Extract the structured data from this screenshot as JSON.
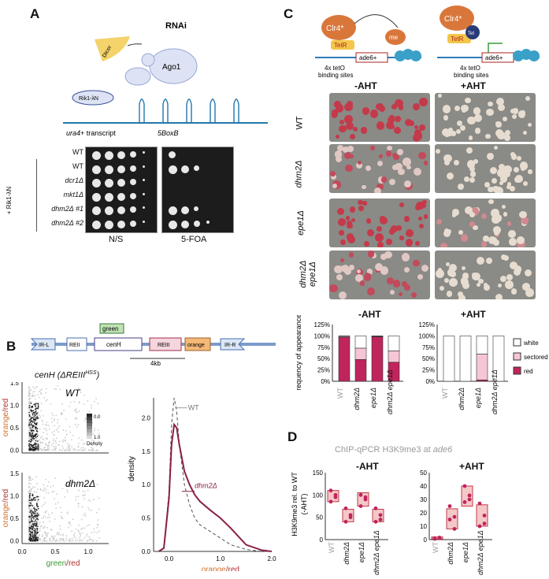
{
  "panels": {
    "A": {
      "letter": "A",
      "rnai_title": "RNAi",
      "dicer": "Dicer",
      "ago1": "Ago1",
      "rik1": "Rik1-λN",
      "transcript": "ura4",
      "transcript_suffix": "+ transcript",
      "boxb": "5BoxB",
      "strains": [
        "WT",
        "WT",
        "dcr1Δ",
        "mkt1Δ",
        "dhm2Δ #1",
        "dhm2Δ #2"
      ],
      "group_label": "+ Rik1-λN",
      "plate_labels": [
        "N/S",
        "5-FOA"
      ]
    },
    "B": {
      "letter": "B",
      "construct": [
        "IR-L",
        "REII",
        "cenH",
        "REIII",
        "orange",
        "IR-R"
      ],
      "green_label": "green",
      "scale_label": "4kb",
      "title_main": "cenH (ΔREIII",
      "title_sup": "HSS",
      "title_end": ")",
      "density_label": "Density",
      "density_ticks": [
        "0.0",
        "1.0"
      ],
      "scatter_titles": [
        "WT",
        "dhm2Δ"
      ],
      "y_label_orange": "orange",
      "y_label_red": "/red",
      "x_label_green": "green",
      "x_label_red": "/red",
      "scatter_yticks": [
        "1.5",
        "1.0",
        "0.5",
        "0.0"
      ],
      "scatter_xticks": [
        "0.0",
        "0.5",
        "1.0"
      ],
      "density_axis": "density",
      "density_yticks": [
        "2.0",
        "1.5",
        "1.0",
        "0.5",
        "0.0"
      ],
      "density_xticks": [
        "0.0",
        "1.0",
        "2.0"
      ],
      "density_xlabel_orange": "orange",
      "density_xlabel_red": "/red",
      "legend_wt": "WT",
      "legend_dhm2": "dhm2Δ"
    },
    "C": {
      "letter": "C",
      "clr4": "Clr4*",
      "tetr": "TetR",
      "tet": "Tet",
      "me": "me",
      "ade6": "ade6+",
      "binding": [
        "4x tetO",
        "binding sites"
      ],
      "conditions": [
        "-AHT",
        "+AHT"
      ],
      "rows": [
        "WT",
        "dhm2Δ",
        "epe1Δ",
        "dhm2Δ epe1Δ"
      ],
      "y_axis": "Frequency of appearance",
      "yticks": [
        "125%",
        "100%",
        "75%",
        "50%",
        "25%",
        "0%"
      ],
      "legend": [
        "white",
        "sectored",
        "red"
      ],
      "xcats": [
        "WT",
        "dhm2Δ",
        "epe1Δ",
        "dhm2Δ epe1Δ"
      ],
      "colors": {
        "red": "#c0245c",
        "sectored": "#f6c6d6",
        "white": "#ffffff"
      }
    },
    "D": {
      "letter": "D",
      "title": "ChIP-qPCR H3K9me3 at ",
      "title_italic": "ade6",
      "conditions": [
        "-AHT",
        "+AHT"
      ],
      "y_axis": [
        "H3K9me3 rel. to WT",
        "(-AHT)"
      ],
      "left_yticks": [
        "150",
        "100",
        "50",
        "0"
      ],
      "right_yticks": [
        "50",
        "40",
        "30",
        "20",
        "10",
        "0"
      ],
      "xcats": [
        "WT",
        "dhm2Δ",
        "epe1Δ",
        "dhm2Δ epe1Δ"
      ]
    }
  },
  "chart_data": [
    {
      "type": "bar",
      "title": "-AHT",
      "ylabel": "Frequency of appearance",
      "ylim": [
        0,
        125
      ],
      "categories": [
        "WT",
        "dhm2Δ",
        "epe1Δ",
        "dhm2Δ epe1Δ"
      ],
      "series": [
        {
          "name": "red",
          "values": [
            97,
            48,
            98,
            42
          ]
        },
        {
          "name": "sectored",
          "values": [
            2,
            25,
            1,
            25
          ]
        },
        {
          "name": "white",
          "values": [
            1,
            27,
            1,
            33
          ]
        }
      ]
    },
    {
      "type": "bar",
      "title": "+AHT",
      "ylabel": "Frequency of appearance",
      "ylim": [
        0,
        125
      ],
      "categories": [
        "WT",
        "dhm2Δ",
        "epe1Δ",
        "dhm2Δ epe1Δ"
      ],
      "series": [
        {
          "name": "red",
          "values": [
            0,
            0,
            3,
            0
          ]
        },
        {
          "name": "sectored",
          "values": [
            0,
            0,
            57,
            0
          ]
        },
        {
          "name": "white",
          "values": [
            100,
            100,
            40,
            100
          ]
        }
      ]
    },
    {
      "type": "scatter",
      "title": "-AHT",
      "ylim": [
        0,
        150
      ],
      "categories": [
        "WT",
        "dhm2Δ",
        "epe1Δ",
        "dhm2Δ epe1Δ"
      ],
      "points": [
        [
          110,
          95,
          85,
          100
        ],
        [
          70,
          55,
          40,
          50
        ],
        [
          100,
          90,
          75,
          95
        ],
        [
          70,
          55,
          40,
          45
        ]
      ],
      "box": [
        [
          85,
          110
        ],
        [
          40,
          68
        ],
        [
          75,
          105
        ],
        [
          40,
          68
        ]
      ]
    },
    {
      "type": "scatter",
      "title": "+AHT",
      "ylim": [
        0,
        50
      ],
      "categories": [
        "WT",
        "dhm2Δ",
        "epe1Δ",
        "dhm2Δ epe1Δ"
      ],
      "points": [
        [
          1,
          1.5,
          0.5,
          1
        ],
        [
          25,
          17,
          15,
          8
        ],
        [
          40,
          30,
          28,
          33
        ],
        [
          27,
          18,
          10,
          12
        ]
      ],
      "box": [
        [
          0.5,
          2
        ],
        [
          8,
          23
        ],
        [
          25,
          40
        ],
        [
          10,
          26
        ]
      ]
    },
    {
      "type": "line",
      "xlabel": "orange/red",
      "ylabel": "density",
      "xlim": [
        -0.3,
        2.0
      ],
      "ylim": [
        0,
        2.3
      ],
      "series": [
        {
          "name": "WT",
          "x": [
            -0.2,
            -0.1,
            0,
            0.05,
            0.1,
            0.15,
            0.2,
            0.3,
            0.4,
            0.5,
            0.6,
            0.8,
            1.0,
            1.2,
            1.5,
            1.8,
            2.0
          ],
          "y": [
            0,
            0.05,
            0.9,
            1.9,
            2.3,
            2.1,
            1.6,
            1.0,
            0.7,
            0.5,
            0.4,
            0.3,
            0.2,
            0.1,
            0.03,
            0,
            0
          ]
        },
        {
          "name": "dhm2Δ",
          "x": [
            -0.2,
            -0.1,
            0,
            0.05,
            0.1,
            0.15,
            0.2,
            0.3,
            0.4,
            0.5,
            0.6,
            0.8,
            1.0,
            1.2,
            1.5,
            1.8,
            2.0
          ],
          "y": [
            0,
            0.05,
            0.8,
            1.6,
            1.9,
            1.85,
            1.6,
            1.2,
            1.0,
            0.85,
            0.75,
            0.62,
            0.5,
            0.35,
            0.1,
            0.02,
            0
          ]
        }
      ]
    }
  ]
}
